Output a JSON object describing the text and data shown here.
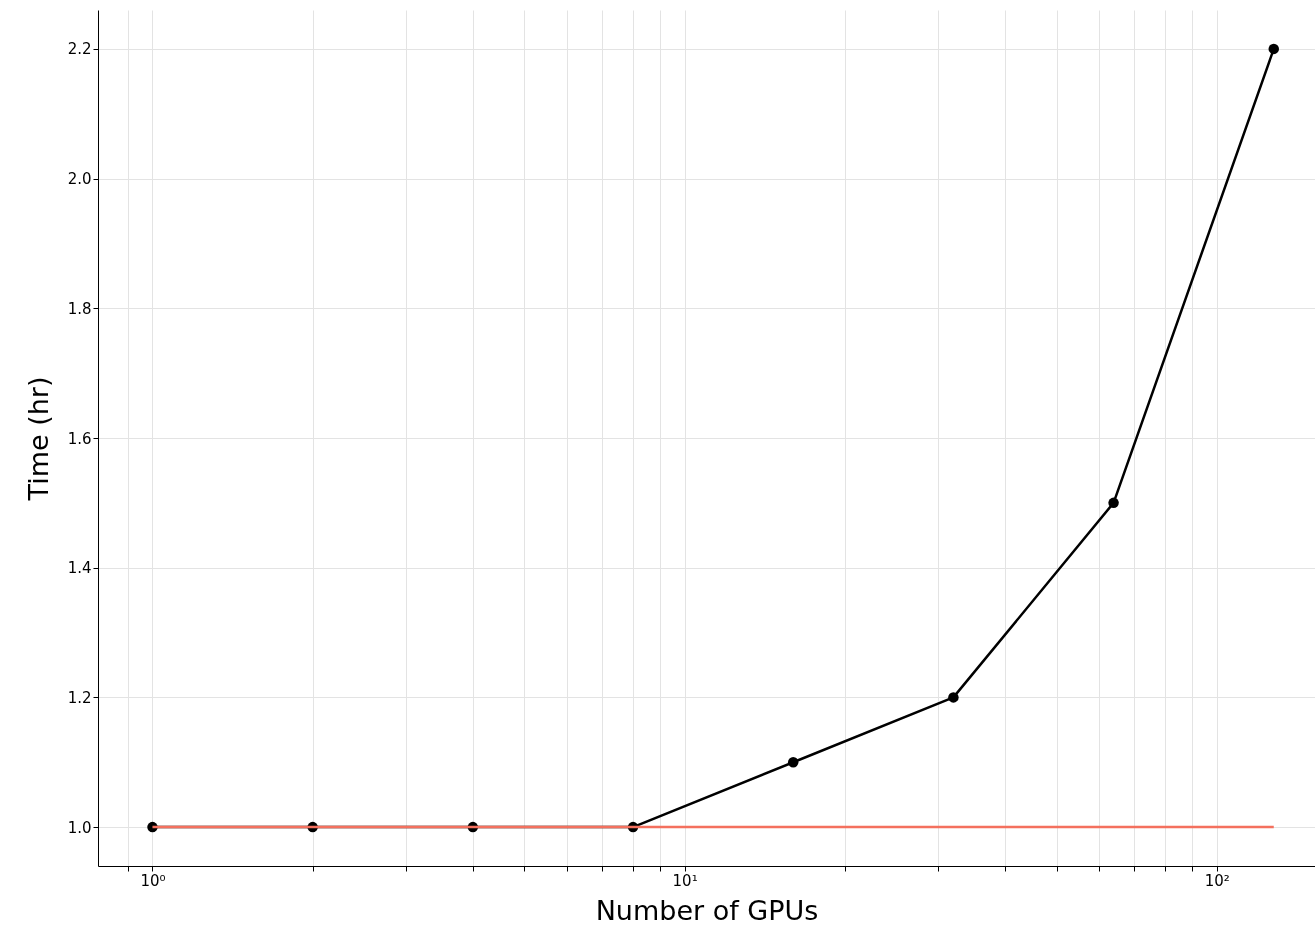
{
  "chart_data": {
    "type": "line",
    "xlabel": "Number of GPUs",
    "ylabel": "Time (hr)",
    "log": "x",
    "xlim": [
      0.79,
      153
    ],
    "ylim": [
      0.94,
      2.26
    ],
    "xticks": [
      {
        "value": 0.9,
        "label": null
      },
      {
        "value": 1,
        "label": "10⁰"
      },
      {
        "value": 2,
        "label": null
      },
      {
        "value": 3,
        "label": null
      },
      {
        "value": 4,
        "label": null
      },
      {
        "value": 5,
        "label": null
      },
      {
        "value": 6,
        "label": null
      },
      {
        "value": 7,
        "label": null
      },
      {
        "value": 8,
        "label": null
      },
      {
        "value": 9,
        "label": null
      },
      {
        "value": 10,
        "label": "10¹"
      },
      {
        "value": 20,
        "label": null
      },
      {
        "value": 30,
        "label": null
      },
      {
        "value": 40,
        "label": null
      },
      {
        "value": 50,
        "label": null
      },
      {
        "value": 60,
        "label": null
      },
      {
        "value": 70,
        "label": null
      },
      {
        "value": 80,
        "label": null
      },
      {
        "value": 90,
        "label": null
      },
      {
        "value": 100,
        "label": "10²"
      }
    ],
    "yticks": [
      {
        "value": 1,
        "label": "1.0"
      },
      1.2,
      1.4,
      1.6,
      1.8,
      {
        "value": 2,
        "label": "2.0"
      },
      2.2
    ],
    "grid": true,
    "series": [
      {
        "color": "#000000",
        "marker": "circle",
        "x": [
          1,
          2,
          4,
          8,
          16,
          32,
          64,
          128
        ],
        "values": [
          1.0,
          1.0,
          1.0,
          1.0,
          1.1,
          1.2,
          1.5,
          2.2
        ]
      },
      {
        "color": "#f4705e",
        "marker": "none",
        "x": [
          1,
          128
        ],
        "values": [
          1.0,
          1.0
        ]
      }
    ]
  }
}
